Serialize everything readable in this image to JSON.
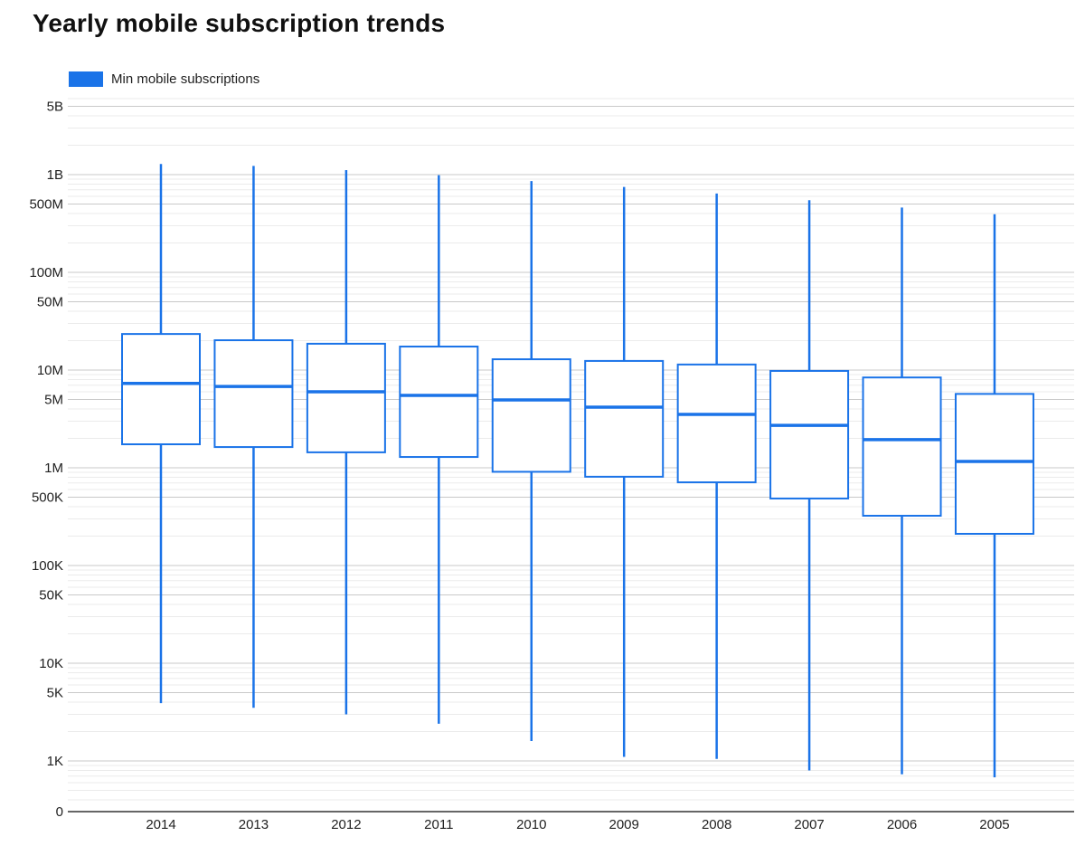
{
  "title": "Yearly mobile subscription trends",
  "legend": {
    "label": "Min mobile subscriptions",
    "color": "#1a73e8"
  },
  "colors": {
    "accent": "#1a73e8",
    "grid_major": "#c9c9c9",
    "grid_minor": "#ebebeb",
    "axis_line": "#333333",
    "text": "#1f1f1f"
  },
  "chart_data": {
    "type": "boxplot",
    "title": "Yearly mobile subscription trends",
    "legend_entries": [
      "Min mobile subscriptions"
    ],
    "x_categories": [
      "2014",
      "2013",
      "2012",
      "2011",
      "2010",
      "2009",
      "2008",
      "2007",
      "2006",
      "2005"
    ],
    "y_axis": {
      "scale": "log",
      "ticks": [
        {
          "label": "5B",
          "value": 5000000000
        },
        {
          "label": "1B",
          "value": 1000000000
        },
        {
          "label": "500M",
          "value": 500000000
        },
        {
          "label": "100M",
          "value": 100000000
        },
        {
          "label": "50M",
          "value": 50000000
        },
        {
          "label": "10M",
          "value": 10000000
        },
        {
          "label": "5M",
          "value": 5000000
        },
        {
          "label": "1M",
          "value": 1000000
        },
        {
          "label": "500K",
          "value": 500000
        },
        {
          "label": "100K",
          "value": 100000
        },
        {
          "label": "50K",
          "value": 50000
        },
        {
          "label": "10K",
          "value": 10000
        },
        {
          "label": "5K",
          "value": 5000
        },
        {
          "label": "1K",
          "value": 1000
        },
        {
          "label": "0",
          "value": 0
        }
      ]
    },
    "series": [
      {
        "year": "2014",
        "low": 3900,
        "q1": 1740000,
        "median": 7300000,
        "q3": 23400000,
        "high": 1286000000
      },
      {
        "year": "2013",
        "low": 3500,
        "q1": 1630000,
        "median": 6800000,
        "q3": 20200000,
        "high": 1229000000
      },
      {
        "year": "2012",
        "low": 3000,
        "q1": 1440000,
        "median": 6000000,
        "q3": 18600000,
        "high": 1112000000
      },
      {
        "year": "2011",
        "low": 2400,
        "q1": 1290000,
        "median": 5500000,
        "q3": 17400000,
        "high": 986000000
      },
      {
        "year": "2010",
        "low": 1600,
        "q1": 910000,
        "median": 4950000,
        "q3": 12900000,
        "high": 859000000
      },
      {
        "year": "2009",
        "low": 1100,
        "q1": 810000,
        "median": 4170000,
        "q3": 12400000,
        "high": 747000000
      },
      {
        "year": "2008",
        "low": 1050,
        "q1": 710000,
        "median": 3520000,
        "q3": 11400000,
        "high": 641000000
      },
      {
        "year": "2007",
        "low": 800,
        "q1": 485000,
        "median": 2720000,
        "q3": 9800000,
        "high": 547000000
      },
      {
        "year": "2006",
        "low": 730,
        "q1": 323000,
        "median": 1940000,
        "q3": 8400000,
        "high": 461000000
      },
      {
        "year": "2005",
        "low": 680,
        "q1": 211000,
        "median": 1160000,
        "q3": 5700000,
        "high": 393000000
      }
    ]
  }
}
